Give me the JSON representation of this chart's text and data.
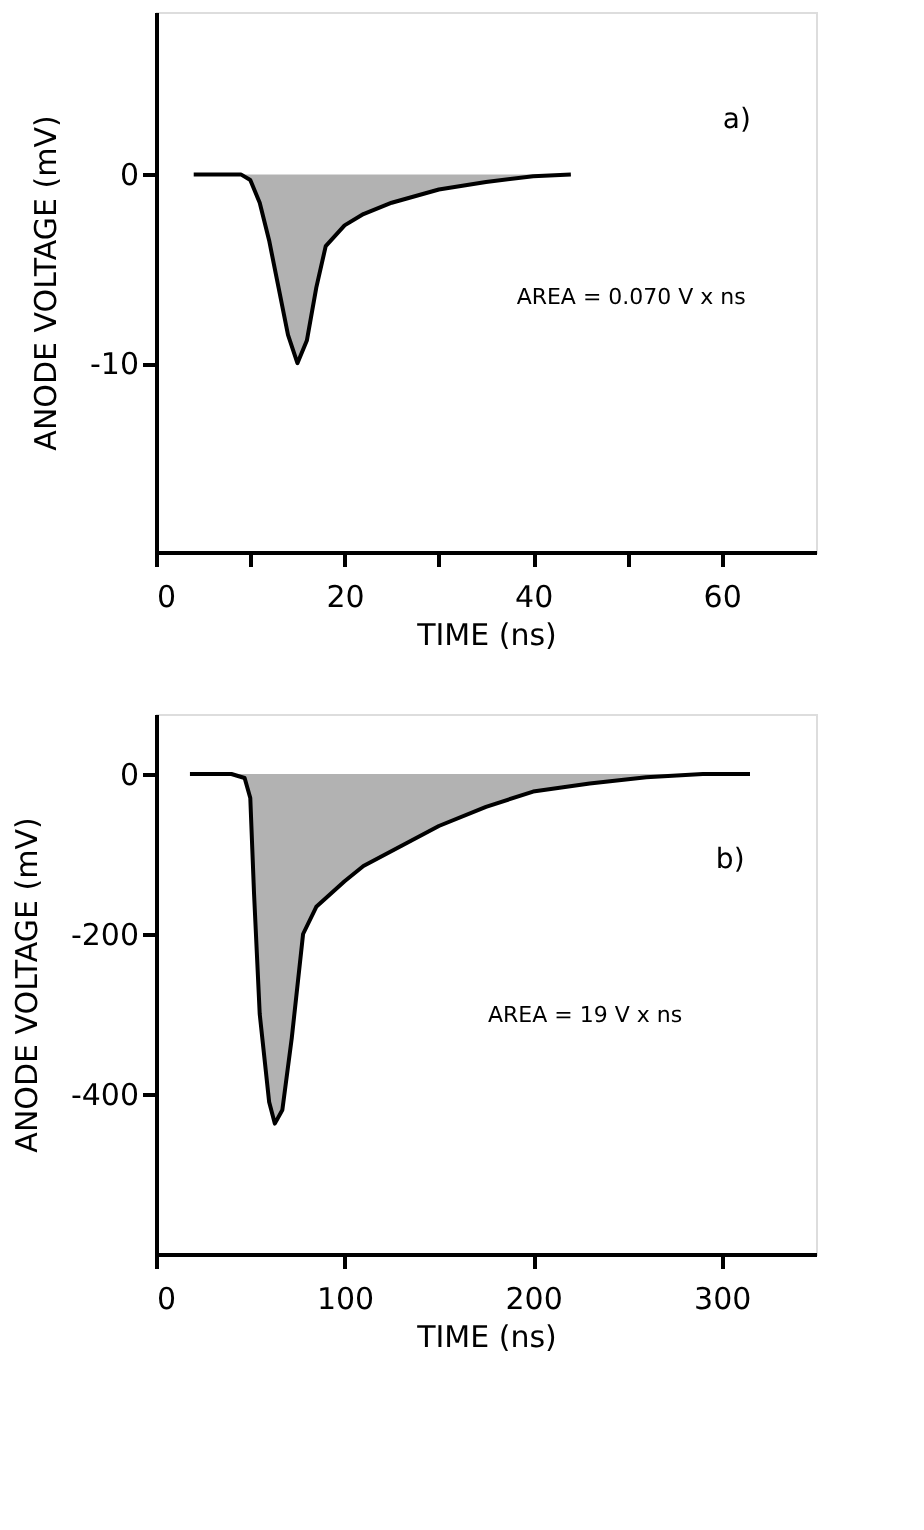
{
  "chart_data": [
    {
      "type": "area",
      "xlabel": "TIME (ns)",
      "ylabel": "ANODE VOLTAGE (mV)",
      "x": [
        4,
        9,
        10,
        11,
        12,
        13,
        14,
        15,
        16,
        17,
        18,
        20,
        22,
        25,
        30,
        35,
        40,
        44
      ],
      "series": [
        {
          "color": "#000000",
          "values": [
            0,
            0,
            -0.3,
            -1.5,
            -3.5,
            -6,
            -8.5,
            -10,
            -8.8,
            -6,
            -3.8,
            -2.7,
            -2.1,
            -1.5,
            -0.8,
            -0.4,
            -0.1,
            0
          ]
        }
      ],
      "xlim": [
        0,
        70
      ],
      "xticks": [
        0,
        {
          "value": 10,
          "label": null
        },
        20,
        {
          "value": 30,
          "label": null
        },
        40,
        {
          "value": 50,
          "label": null
        },
        60
      ],
      "ylim": [
        -20,
        8.6
      ],
      "yticks": [
        0,
        -10
      ],
      "grid": false,
      "annotations": [
        "a)",
        "AREA = 0.070 V x ns"
      ]
    },
    {
      "type": "area",
      "xlabel": "TIME (ns)",
      "ylabel": "ANODE VOLTAGE (mV)",
      "x": [
        18,
        40,
        47,
        50,
        52,
        55,
        60,
        63,
        67,
        72,
        78,
        85,
        100,
        110,
        130,
        150,
        175,
        200,
        230,
        260,
        290,
        315
      ],
      "series": [
        {
          "color": "#000000",
          "values": [
            0,
            0,
            -5,
            -30,
            -150,
            -300,
            -410,
            -437,
            -420,
            -330,
            -200,
            -166,
            -134,
            -115,
            -90,
            -65,
            -41,
            -22,
            -12,
            -4,
            0,
            0
          ]
        }
      ],
      "xlim": [
        0,
        350
      ],
      "xticks": [
        0,
        100,
        200,
        300
      ],
      "ylim": [
        -600,
        75
      ],
      "yticks": [
        0,
        -200,
        -400
      ],
      "grid": false,
      "annotations": [
        "b)",
        "AREA = 19 V x ns"
      ]
    }
  ]
}
